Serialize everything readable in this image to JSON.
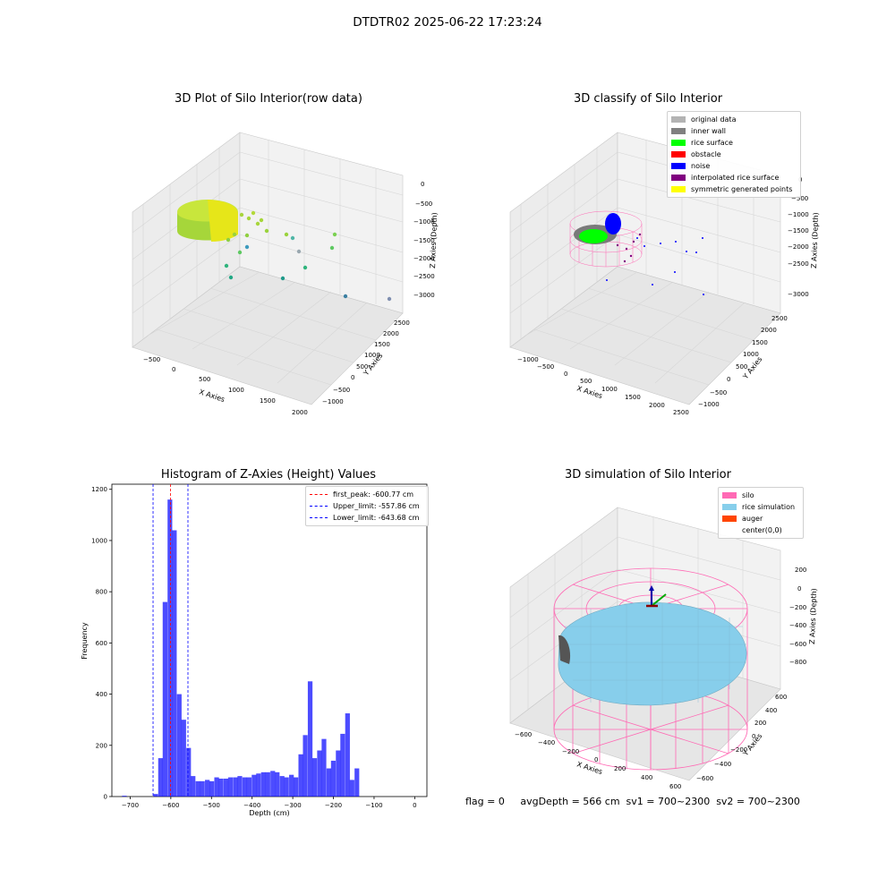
{
  "suptitle": "DTDTR02 2025-06-22 17:23:24",
  "footer": "flag = 0     avgDepth = 566 cm  sv1 = 700~2300  sv2 = 700~2300",
  "panels": {
    "raw": {
      "title": "3D Plot of Silo Interior(row data)",
      "xlabel": "X Axies",
      "ylabel": "Y Axies",
      "zlabel": "Z Axies (Depth)",
      "xticks": [
        "−500",
        "0",
        "500",
        "1000",
        "1500",
        "2000"
      ],
      "yticks": [
        "−1000",
        "−500",
        "0",
        "500",
        "1000",
        "1500",
        "2000",
        "2500"
      ],
      "zticks": [
        "0",
        "−500",
        "−1000",
        "−1500",
        "−2000",
        "−2500",
        "−3000"
      ]
    },
    "classify": {
      "title": "3D classify of Silo Interior",
      "xlabel": "X Axies",
      "ylabel": "Y Axies",
      "zlabel": "Z Axies (Depth)",
      "xticks": [
        "−1000",
        "−500",
        "0",
        "500",
        "1000",
        "1500",
        "2000",
        "2500"
      ],
      "yticks": [
        "−1000",
        "−500",
        "0",
        "500",
        "1000",
        "1500",
        "2000",
        "2500"
      ],
      "zticks": [
        "0",
        "−500",
        "−1000",
        "−1500",
        "−2000",
        "−2500",
        "−3000"
      ],
      "legend": [
        {
          "label": "original data",
          "color": "#b3b3b3"
        },
        {
          "label": "inner wall",
          "color": "#808080"
        },
        {
          "label": "rice surface",
          "color": "#00ff00"
        },
        {
          "label": "obstacle",
          "color": "#ff0000"
        },
        {
          "label": "noise",
          "color": "#0000ff"
        },
        {
          "label": "interpolated rice surface",
          "color": "#800080"
        },
        {
          "label": "symmetric generated points",
          "color": "#ffff00"
        }
      ]
    },
    "sim": {
      "title": "3D simulation of Silo Interior",
      "xlabel": "X Axies",
      "ylabel": "Y Axies",
      "zlabel": "Z Axies (Depth)",
      "xticks": [
        "−600",
        "−400",
        "−200",
        "0",
        "200",
        "400",
        "600"
      ],
      "yticks": [
        "−600",
        "−400",
        "−200",
        "0",
        "200",
        "400",
        "600"
      ],
      "zticks": [
        "200",
        "0",
        "−200",
        "−400",
        "−600",
        "−800"
      ],
      "legend": [
        {
          "label": "silo",
          "color": "#ff69b4"
        },
        {
          "label": "rice simulation",
          "color": "#87ceeb"
        },
        {
          "label": "auger",
          "color": "#ff4500"
        },
        {
          "label": "center(0,0)",
          "color": ""
        }
      ]
    }
  },
  "chart_data": {
    "type": "bar",
    "title": "Histogram of Z-Axies (Height) Values",
    "xlabel": "Depth (cm)",
    "ylabel": "Frequency",
    "xlim": [
      -745,
      30
    ],
    "ylim": [
      0,
      1220
    ],
    "xticks": [
      -700,
      -600,
      -500,
      -400,
      -300,
      -200,
      -100,
      0
    ],
    "yticks": [
      0,
      200,
      400,
      600,
      800,
      1000,
      1200
    ],
    "bar_color": "#0000ff",
    "bin_width": 11.5,
    "bins": [
      [
        -720,
        3
      ],
      [
        -643,
        10
      ],
      [
        -631,
        150
      ],
      [
        -620,
        760
      ],
      [
        -608,
        1160
      ],
      [
        -597,
        1040
      ],
      [
        -585,
        400
      ],
      [
        -574,
        300
      ],
      [
        -562,
        190
      ],
      [
        -551,
        80
      ],
      [
        -539,
        60
      ],
      [
        -528,
        60
      ],
      [
        -516,
        65
      ],
      [
        -505,
        60
      ],
      [
        -493,
        75
      ],
      [
        -482,
        70
      ],
      [
        -470,
        70
      ],
      [
        -459,
        75
      ],
      [
        -447,
        75
      ],
      [
        -436,
        80
      ],
      [
        -424,
        75
      ],
      [
        -413,
        75
      ],
      [
        -401,
        85
      ],
      [
        -390,
        90
      ],
      [
        -378,
        95
      ],
      [
        -367,
        95
      ],
      [
        -355,
        100
      ],
      [
        -344,
        95
      ],
      [
        -332,
        80
      ],
      [
        -321,
        75
      ],
      [
        -309,
        85
      ],
      [
        -298,
        75
      ],
      [
        -286,
        165
      ],
      [
        -275,
        240
      ],
      [
        -263,
        450
      ],
      [
        -252,
        150
      ],
      [
        -240,
        180
      ],
      [
        -229,
        225
      ],
      [
        -217,
        110
      ],
      [
        -206,
        140
      ],
      [
        -194,
        180
      ],
      [
        -183,
        245
      ],
      [
        -171,
        325
      ],
      [
        -160,
        65
      ],
      [
        -148,
        110
      ]
    ],
    "vlines": [
      {
        "label": "first_peak: -600.77 cm",
        "x": -600.77,
        "color": "#ff0000"
      },
      {
        "label": "Upper_limit: -557.86 cm",
        "x": -557.86,
        "color": "#0000ff"
      },
      {
        "label": "Lower_limit: -643.68 cm",
        "x": -643.68,
        "color": "#0000ff"
      }
    ]
  }
}
